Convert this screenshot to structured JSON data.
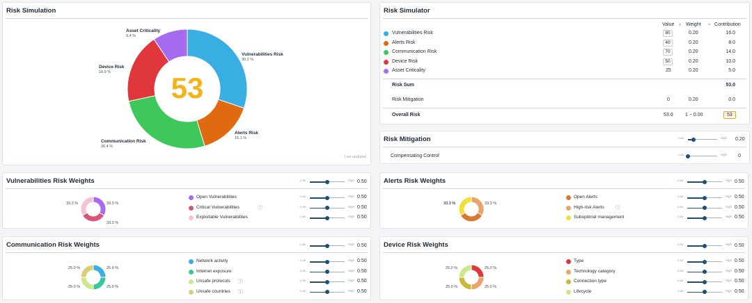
{
  "risk_simulation": {
    "title": "Risk Simulation",
    "score": "53",
    "live_updated": "Live updated",
    "slices": [
      {
        "name": "Vulnerabilities Risk",
        "pct": "30.2 %",
        "value": 30.2,
        "color": "#39aee3"
      },
      {
        "name": "Alerts Risk",
        "pct": "15.1 %",
        "value": 15.1,
        "color": "#e06a10"
      },
      {
        "name": "Communication Risk",
        "pct": "26.4 %",
        "value": 26.4,
        "color": "#3ec85c"
      },
      {
        "name": "Device Risk",
        "pct": "18.9 %",
        "value": 18.9,
        "color": "#e0373c"
      },
      {
        "name": "Asset Criticality",
        "pct": "9.4 %",
        "value": 9.4,
        "color": "#a56cf0"
      }
    ]
  },
  "risk_simulator": {
    "title": "Risk Simulator",
    "col_value": "Value",
    "col_weight": "Weight",
    "col_contribution": "Contribution",
    "times": "x",
    "equals": "=",
    "rows": [
      {
        "label": "Vulnerabilities Risk",
        "value": "80",
        "weight": "0.20",
        "contribution": "16.0",
        "color": "#39aee3",
        "boxed": true
      },
      {
        "label": "Alerts Risk",
        "value": "40",
        "weight": "0.20",
        "contribution": "8.0",
        "color": "#e06a10",
        "boxed": true
      },
      {
        "label": "Communication Risk",
        "value": "70",
        "weight": "0.20",
        "contribution": "14.0",
        "color": "#3ec85c",
        "boxed": true
      },
      {
        "label": "Device Risk",
        "value": "50",
        "weight": "0.20",
        "contribution": "10.0",
        "color": "#e0373c",
        "boxed": true
      },
      {
        "label": "Asset Criticality",
        "value": "25",
        "weight": "0.20",
        "contribution": "5.0",
        "color": "#a56cf0",
        "boxed": false
      }
    ],
    "risk_sum_label": "Risk Sum",
    "risk_sum_value": "53.0",
    "mitigation_label": "Risk Mitigation",
    "mitigation_value": "0",
    "mitigation_weight": "0.20",
    "mitigation_contribution": "0.0",
    "overall_label": "Overall Risk",
    "overall_sum": "53.0",
    "overall_factor": "1 − 0.00",
    "overall_value": "53"
  },
  "risk_mitigation": {
    "title": "Risk Mitigation",
    "slider_low": "Low",
    "slider_high": "High",
    "title_value": "0.20",
    "title_level": 0.2,
    "compensating_label": "Compensating Control",
    "compensating_value": "0",
    "compensating_level": 0.0
  },
  "low": "Low",
  "high": "High",
  "weight_panels": [
    {
      "id": "vuln",
      "title": "Vulnerabilities Risk Weights",
      "title_value": "0.50",
      "items": [
        {
          "label": "Open Vulnerabilities",
          "value": "0.50",
          "color": "#a56cf0",
          "info": false
        },
        {
          "label": "Critical Vulnerabilities",
          "value": "0.50",
          "color": "#d9567a",
          "info": true
        },
        {
          "label": "Exploitable Vulnerabilities",
          "value": "0.50",
          "color": "#f2c3d4",
          "info": false
        }
      ],
      "donut": [
        {
          "pct": "33.3 %",
          "value": 33.3,
          "color": "#a56cf0"
        },
        {
          "pct": "33.3 %",
          "value": 33.3,
          "color": "#d9567a"
        },
        {
          "pct": "33.3 %",
          "value": 33.3,
          "color": "#f2c3d4"
        }
      ]
    },
    {
      "id": "alerts",
      "title": "Alerts Risk Weights",
      "title_value": "0.50",
      "items": [
        {
          "label": "Open Alerts",
          "value": "0.50",
          "color": "#d9782e",
          "info": false
        },
        {
          "label": "High-risk Alerts",
          "value": "0.50",
          "color": "#eca36a",
          "info": true
        },
        {
          "label": "Suboptimal management",
          "value": "0.50",
          "color": "#f0e03c",
          "info": false
        }
      ],
      "donut": [
        {
          "pct": "33.3 %",
          "value": 33.3,
          "color": "#eca36a"
        },
        {
          "pct": "33.3 %",
          "value": 33.3,
          "color": "#d9782e"
        },
        {
          "pct": "33.3 %",
          "value": 33.3,
          "color": "#f0e03c"
        }
      ]
    },
    {
      "id": "comm",
      "title": "Communication Risk Weights",
      "title_value": "0.50",
      "items": [
        {
          "label": "Network activity",
          "value": "0.50",
          "color": "#39aee3",
          "info": false
        },
        {
          "label": "Internet exposure",
          "value": "0.50",
          "color": "#36c9a0",
          "info": false
        },
        {
          "label": "Unsafe protocols",
          "value": "0.50",
          "color": "#cde88a",
          "info": true
        },
        {
          "label": "Unsafe countries",
          "value": "0.50",
          "color": "#d9cf7a",
          "info": true
        }
      ],
      "donut": [
        {
          "pct": "25.0 %",
          "value": 25,
          "color": "#39aee3"
        },
        {
          "pct": "25.0 %",
          "value": 25,
          "color": "#36c9a0"
        },
        {
          "pct": "25.0 %",
          "value": 25,
          "color": "#cde88a"
        },
        {
          "pct": "25.0 %",
          "value": 25,
          "color": "#d9cf7a"
        }
      ]
    },
    {
      "id": "device",
      "title": "Device Risk Weights",
      "title_value": "0.50",
      "items": [
        {
          "label": "Type",
          "value": "0.50",
          "color": "#e0373c",
          "info": false
        },
        {
          "label": "Technology category",
          "value": "0.50",
          "color": "#eca36a",
          "info": false
        },
        {
          "label": "Connection type",
          "value": "0.50",
          "color": "#c9b93a",
          "info": false
        },
        {
          "label": "Lifecycle",
          "value": "0.50",
          "color": "#cde88a",
          "info": false
        }
      ],
      "donut": [
        {
          "pct": "25.0 %",
          "value": 25,
          "color": "#e0373c"
        },
        {
          "pct": "25.0 %",
          "value": 25,
          "color": "#eca36a"
        },
        {
          "pct": "25.0 %",
          "value": 25,
          "color": "#c9b93a"
        },
        {
          "pct": "25.0 %",
          "value": 25,
          "color": "#cde88a"
        }
      ]
    }
  ]
}
